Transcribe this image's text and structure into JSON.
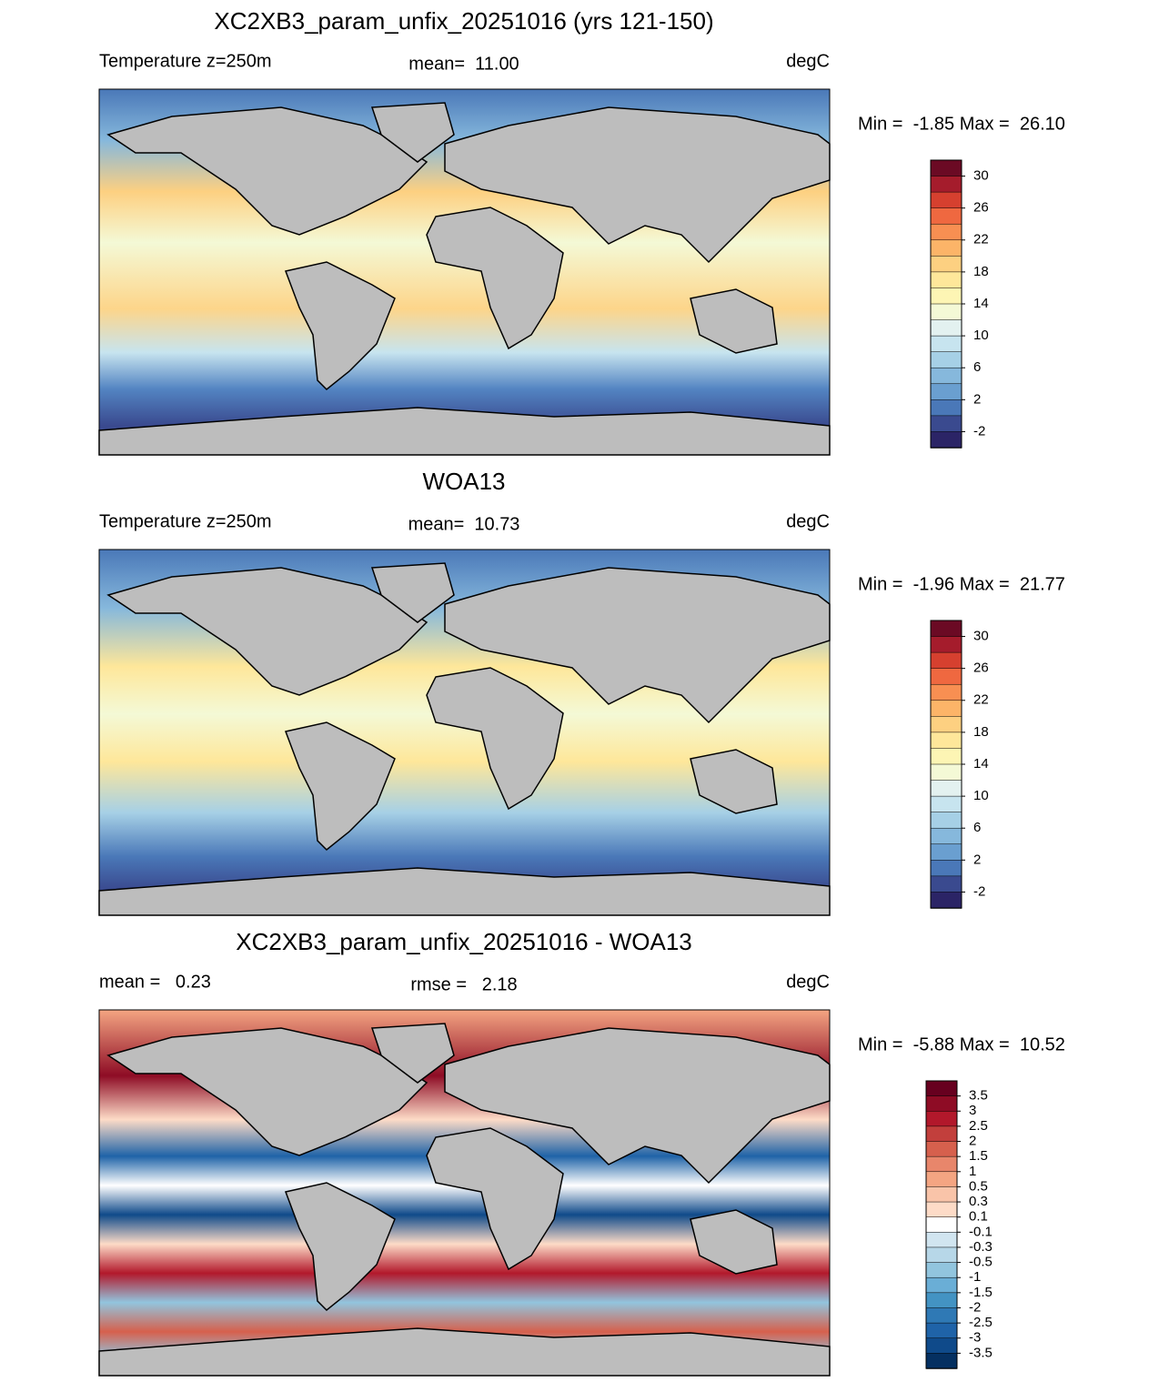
{
  "panels": [
    {
      "title": "XC2XB3_param_unfix_20251016 (yrs 121-150)",
      "left_label": "Temperature z=250m",
      "center_label": "mean=  11.00",
      "right_label": "degC",
      "stats": "Min =  -1.85 Max =  26.10",
      "colorbar": {
        "labels": [
          30,
          26,
          22,
          18,
          14,
          10,
          6,
          2,
          -2
        ],
        "colors": [
          "#6b0a24",
          "#a51c2c",
          "#d6402f",
          "#ef6840",
          "#f88f52",
          "#fcb468",
          "#fdd081",
          "#fee79a",
          "#fdf5b4",
          "#f4f9d6",
          "#e3f1f0",
          "#c7e4ef",
          "#a6d0e6",
          "#86b8dc",
          "#6a9fd0",
          "#4a78b8",
          "#3a4a8f",
          "#2b2466"
        ]
      }
    },
    {
      "title": "WOA13",
      "left_label": "Temperature z=250m",
      "center_label": "mean=  10.73",
      "right_label": "degC",
      "stats": "Min =  -1.96 Max =  21.77",
      "colorbar": {
        "labels": [
          30,
          26,
          22,
          18,
          14,
          10,
          6,
          2,
          -2
        ],
        "colors": [
          "#6b0a24",
          "#a51c2c",
          "#d6402f",
          "#ef6840",
          "#f88f52",
          "#fcb468",
          "#fdd081",
          "#fee79a",
          "#fdf5b4",
          "#f4f9d6",
          "#e3f1f0",
          "#c7e4ef",
          "#a6d0e6",
          "#86b8dc",
          "#6a9fd0",
          "#4a78b8",
          "#3a4a8f",
          "#2b2466"
        ]
      }
    },
    {
      "title": "XC2XB3_param_unfix_20251016 - WOA13",
      "left_label": "mean =   0.23",
      "center_label": "rmse =   2.18",
      "right_label": "degC",
      "stats": "Min =  -5.88 Max =  10.52",
      "colorbar": {
        "labels": [
          3.5,
          3,
          2.5,
          2,
          1.5,
          1,
          0.5,
          0.3,
          0.1,
          -0.1,
          -0.3,
          -0.5,
          -1,
          -1.5,
          -2,
          -2.5,
          -3,
          -3.5
        ],
        "colors": [
          "#67001f",
          "#8e0c25",
          "#b2182b",
          "#c23f3c",
          "#d6604d",
          "#e8866b",
          "#f4a582",
          "#f9c4a9",
          "#fddbc7",
          "#ffffff",
          "#d1e5f0",
          "#b7d7e8",
          "#92c5de",
          "#6aaed6",
          "#4393c3",
          "#2f79b5",
          "#1f63a8",
          "#0f4a8a",
          "#053061"
        ]
      }
    }
  ]
}
